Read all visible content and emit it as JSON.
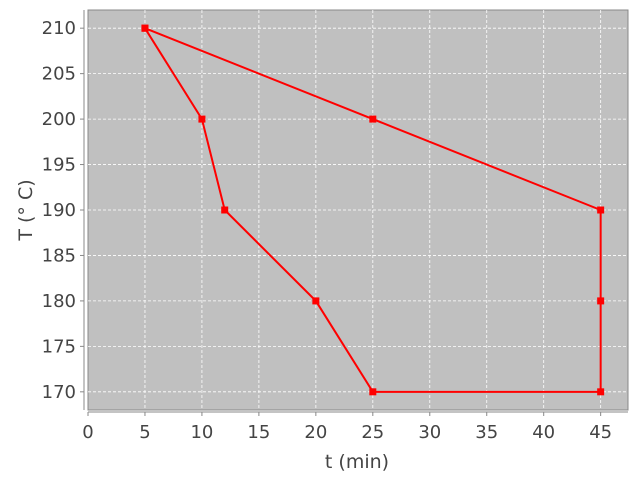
{
  "chart_data": {
    "type": "line",
    "title": "",
    "xlabel": "t (min)",
    "ylabel": "T (° C)",
    "xlim": [
      0,
      47.4
    ],
    "ylim": [
      168,
      212
    ],
    "xticks": [
      0,
      5,
      10,
      15,
      20,
      25,
      30,
      35,
      40,
      45
    ],
    "yticks": [
      170,
      175,
      180,
      185,
      190,
      195,
      200,
      205,
      210
    ],
    "grid": true,
    "background": "#c0c0c0",
    "series": [
      {
        "color": "#ff0000",
        "marker": "square",
        "x": [
          5,
          10,
          12,
          20,
          25,
          45,
          45,
          45,
          25,
          5
        ],
        "y": [
          210,
          200,
          190,
          180,
          170,
          170,
          180,
          190,
          200,
          210
        ]
      }
    ]
  }
}
